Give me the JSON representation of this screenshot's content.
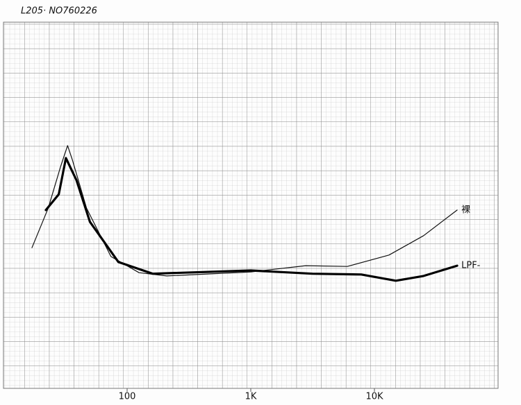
{
  "chart_data": {
    "type": "line",
    "title": "L205· NO760226",
    "x_scale": "log",
    "xlim": [
      10,
      100000
    ],
    "xticks": [
      100,
      {
        "value": 1000,
        "label": "1K"
      },
      {
        "value": 10000,
        "label": "10K"
      }
    ],
    "ylim": [
      0,
      100
    ],
    "series": [
      {
        "name": "裸",
        "color": "#111111",
        "line_width": 1.2,
        "x": [
          17,
          23,
          29,
          33,
          36,
          47,
          74,
          125,
          209,
          1000,
          2780,
          6040,
          13100,
          25000,
          46700
        ],
        "values": [
          38.4,
          49.2,
          60.6,
          66.3,
          62.5,
          49.2,
          36,
          31.6,
          30.7,
          31.8,
          33.5,
          33.3,
          36.4,
          41.7,
          48.7
        ]
      },
      {
        "name": "LPF-",
        "color": "#000000",
        "line_width": 3.2,
        "x": [
          22,
          28,
          32,
          39,
          50,
          85,
          161,
          1000,
          3160,
          7820,
          14900,
          25000,
          46700
        ],
        "values": [
          48.7,
          53,
          62.9,
          56.8,
          45.5,
          34.5,
          31.3,
          32.2,
          31.3,
          31.1,
          29.4,
          30.7,
          33.5
        ]
      }
    ]
  }
}
